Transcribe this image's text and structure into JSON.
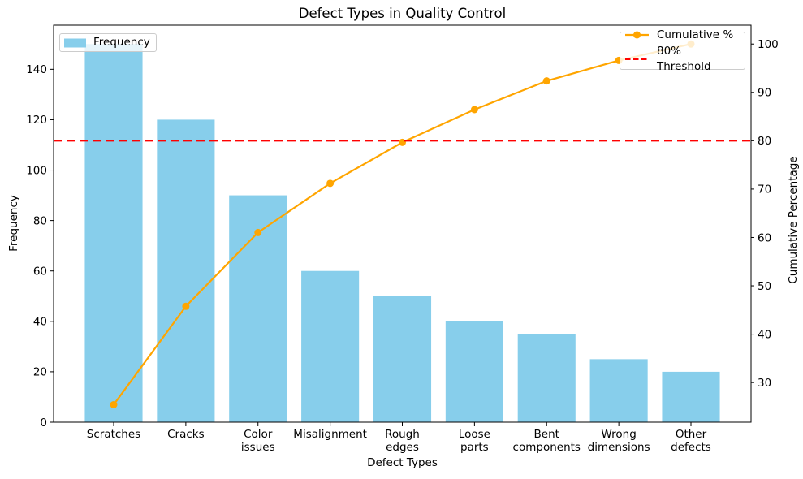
{
  "chart_data": {
    "type": "bar",
    "subtype": "pareto",
    "title": "Defect Types in Quality Control",
    "xlabel": "Defect Types",
    "ylabel": "Frequency",
    "y2label": "Cumulative Percentage",
    "categories": [
      "Scratches",
      "Cracks",
      "Color\nissues",
      "Misalignment",
      "Rough\nedges",
      "Loose\nparts",
      "Bent\ncomponents",
      "Wrong\ndimensions",
      "Other\ndefects"
    ],
    "series": [
      {
        "name": "Frequency",
        "type": "bar",
        "axis": "left",
        "color": "#87CEEB",
        "values": [
          150,
          120,
          90,
          60,
          50,
          40,
          35,
          25,
          20
        ]
      },
      {
        "name": "Cumulative %",
        "type": "line",
        "axis": "right",
        "color": "#FFA500",
        "marker": "circle",
        "values": [
          25.42,
          45.76,
          61.02,
          71.19,
          79.66,
          86.44,
          92.37,
          96.61,
          100.0
        ]
      },
      {
        "name": "80% Threshold",
        "type": "hline",
        "axis": "right",
        "color": "#FF0000",
        "style": "dashed",
        "value": 80
      }
    ],
    "left_axis": {
      "label": "Frequency",
      "range": [
        0,
        157.5
      ],
      "ticks": [
        0,
        20,
        40,
        60,
        80,
        100,
        120,
        140
      ]
    },
    "right_axis": {
      "label": "Cumulative Percentage",
      "range": [
        21.8,
        103.9
      ],
      "ticks": [
        30,
        40,
        50,
        60,
        70,
        80,
        90,
        100
      ]
    },
    "grid": false,
    "legend_left_entries": [
      "Frequency"
    ],
    "legend_right_entries": [
      "Cumulative %",
      "80% Threshold"
    ],
    "text_color": "#000000",
    "background_color": "#ffffff"
  }
}
